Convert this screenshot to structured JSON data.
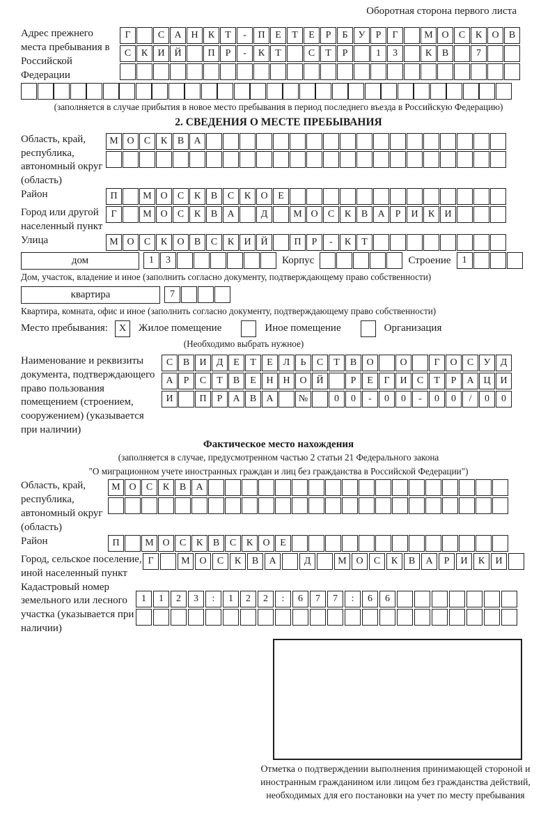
{
  "page": {
    "header_note": "Оборотная сторона первого листа",
    "ink_color": "#1c1c1c",
    "paper_color": "#ffffff"
  },
  "sectionA": {
    "label": "Адрес прежнего места пребывания в Российской Федерации",
    "rows": [
      {
        "text": "Г САНКТ-ПЕТЕРБУРГ МОСКОВ",
        "n": 24
      },
      {
        "text": "СКИЙ ПР-КТ СТР 13 КВ 7",
        "n": 24
      },
      {
        "text": "",
        "n": 24
      }
    ],
    "row_full": {
      "text": "",
      "n": 30
    },
    "note": "(заполняется в случае прибытия в новое место пребывания в период последнего въезда в Российскую Федерацию)"
  },
  "section2": {
    "title": "2. СВЕДЕНИЯ О МЕСТЕ ПРЕБЫВАНИЯ",
    "oblast": {
      "label": "Область, край, республика, автономный округ (область)",
      "rows": [
        {
          "text": "МОСКВА",
          "n": 24
        },
        {
          "text": "",
          "n": 24
        }
      ]
    },
    "raion": {
      "label": "Район",
      "row": {
        "text": "П МОСКВСКОЕ",
        "n": 24
      }
    },
    "gorod": {
      "label": "Город или другой населенный пункт",
      "row": {
        "text": "Г МОСКВА Д МОСКВАРИКИ",
        "n": 24
      }
    },
    "ulitsa": {
      "label": "Улица",
      "row": {
        "text": "МОСКОВСКИЙ ПР-КТ",
        "n": 24
      }
    },
    "dom": {
      "box_label": "дом",
      "cells": {
        "text": "13",
        "n": 8
      },
      "korpus_label": "Корпус",
      "korpus_cells": {
        "text": "",
        "n": 5
      },
      "stroenie_label": "Строение",
      "stroenie_cells": {
        "text": "1",
        "n": 4
      },
      "note": "Дом, участок, владение и иное (заполнить согласно документу, подтверждающему право собственности)"
    },
    "kvartira": {
      "box_label": "квартира",
      "cells": {
        "text": "7",
        "n": 4
      },
      "note": "Квартира, комната, офис и иное (заполнить согласно документу, подтверждающему право собственности)"
    },
    "mesto": {
      "label": "Место пребывания:",
      "options": [
        {
          "label": "Жилое помещение",
          "mark": "X"
        },
        {
          "label": "Иное помещение",
          "mark": ""
        },
        {
          "label": "Организация",
          "mark": ""
        }
      ],
      "note": "(Необходимо выбрать нужное)"
    },
    "dokument": {
      "label": "Наименование и реквизиты документа, подтверждающего право пользования помещением (строением, сооружением) (указывается при наличии)",
      "rows": [
        {
          "text": "СВИДЕТЕЛЬСТВО О ГОСУД",
          "n": 21
        },
        {
          "text": "АРСТВЕННОЙ РЕГИСТРАЦИ",
          "n": 21
        },
        {
          "text": "И ПРАВА № 00-00-00/000",
          "n": 21
        }
      ]
    }
  },
  "fakt": {
    "title": "Фактическое место нахождения",
    "note1": "(заполняется в случае, предусмотренном частью 2 статьи 21 Федерального закона",
    "note2": "\"О миграционном учете иностранных граждан и лиц без гражданства в Российской Федерации\")",
    "oblast": {
      "label": "Область, край, республика, автономный округ (область)",
      "rows": [
        {
          "text": "МОСКВА",
          "n": 24
        },
        {
          "text": "",
          "n": 24
        }
      ]
    },
    "raion": {
      "label": "Район",
      "row": {
        "text": "П МОСКВСКОЕ",
        "n": 24
      }
    },
    "gorod": {
      "label": "Город, сельское поселение, иной населенный пункт",
      "row": {
        "text": "Г МОСКВА Д МОСКВАРИКИ",
        "n": 22
      }
    },
    "kadastr": {
      "label": "Кадастровый номер земельного или лесного участка (указывается при наличии)",
      "rows": [
        {
          "text": "1123:122:677:66",
          "n": 22
        },
        {
          "text": "",
          "n": 22
        }
      ]
    },
    "stamp_caption": "Отметка о подтверждении выполнения принимающей стороной и иностранным гражданином или лицом без гражданства действий, необходимых для его постановки на учет по месту пребывания"
  }
}
